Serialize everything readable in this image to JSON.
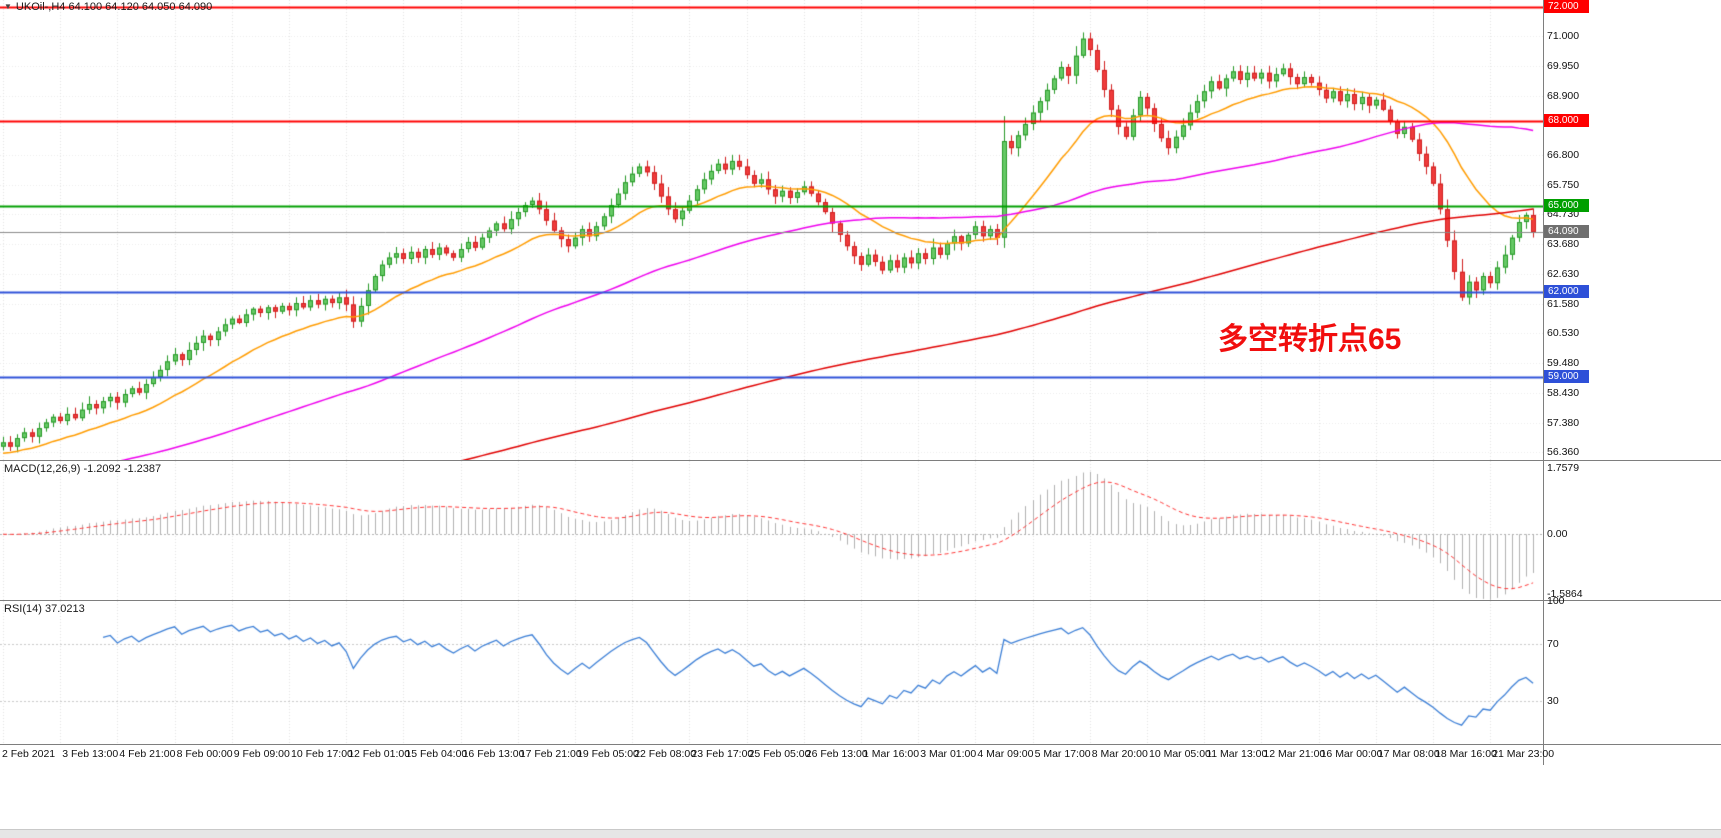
{
  "symbol_info": {
    "marker": "▼",
    "text": "UKOil-,H4 64.100 64.120 64.050 64.090"
  },
  "annotation": {
    "text": "多空转折点65",
    "color": "#f10e0e"
  },
  "panels": {
    "macd": {
      "label": "MACD(12,26,9) -1.2092 -1.2387"
    },
    "rsi": {
      "label": "RSI(14) 37.0213"
    }
  },
  "chart_data": {
    "type": "candlestick+indicators",
    "symbol": "UKOil-",
    "timeframe": "H4",
    "quote": {
      "open": 64.1,
      "high": 64.12,
      "low": 64.05,
      "close": 64.09
    },
    "bars_per_label": 8,
    "x_labels": [
      "2 Feb 2021",
      "3 Feb 13:00",
      "4 Feb 21:00",
      "8 Feb 00:00",
      "9 Feb 09:00",
      "10 Feb 17:00",
      "12 Feb 01:00",
      "15 Feb 04:00",
      "16 Feb 13:00",
      "17 Feb 21:00",
      "19 Feb 05:00",
      "22 Feb 08:00",
      "23 Feb 17:00",
      "25 Feb 05:00",
      "26 Feb 13:00",
      "1 Mar 16:00",
      "3 Mar 01:00",
      "4 Mar 09:00",
      "5 Mar 17:00",
      "8 Mar 20:00",
      "10 Mar 05:00",
      "11 Mar 13:00",
      "12 Mar 21:00",
      "16 Mar 00:00",
      "17 Mar 08:00",
      "18 Mar 16:00",
      "21 Mar 23:00"
    ],
    "closes": [
      56.7,
      56.55,
      56.85,
      57.05,
      56.9,
      57.2,
      57.4,
      57.6,
      57.45,
      57.7,
      57.55,
      57.85,
      58.05,
      57.9,
      58.15,
      58.3,
      58.1,
      58.4,
      58.6,
      58.45,
      58.75,
      59.0,
      59.25,
      59.55,
      59.8,
      59.6,
      59.95,
      60.2,
      60.45,
      60.3,
      60.6,
      60.85,
      61.05,
      60.9,
      61.2,
      61.4,
      61.25,
      61.45,
      61.3,
      61.5,
      61.35,
      61.6,
      61.45,
      61.7,
      61.55,
      61.75,
      61.6,
      61.8,
      61.55,
      60.95,
      61.5,
      62.05,
      62.55,
      62.95,
      63.2,
      63.35,
      63.15,
      63.4,
      63.2,
      63.5,
      63.3,
      63.55,
      63.35,
      63.2,
      63.5,
      63.75,
      63.55,
      63.9,
      64.15,
      64.4,
      64.2,
      64.55,
      64.8,
      65.05,
      65.2,
      64.9,
      64.5,
      64.15,
      63.85,
      63.6,
      63.9,
      64.2,
      63.95,
      64.3,
      64.65,
      65.05,
      65.45,
      65.85,
      66.15,
      66.4,
      66.2,
      65.8,
      65.35,
      64.9,
      64.55,
      64.85,
      65.2,
      65.6,
      65.95,
      66.25,
      66.5,
      66.3,
      66.6,
      66.4,
      66.1,
      65.8,
      65.95,
      65.6,
      65.35,
      65.55,
      65.3,
      65.5,
      65.7,
      65.45,
      65.15,
      64.8,
      64.4,
      64.0,
      63.6,
      63.25,
      62.95,
      63.3,
      63.05,
      62.75,
      63.1,
      62.85,
      63.2,
      63.0,
      63.35,
      63.15,
      63.55,
      63.3,
      63.7,
      63.95,
      63.7,
      64.0,
      64.3,
      63.95,
      64.2,
      63.9,
      67.3,
      67.05,
      67.5,
      67.9,
      68.3,
      68.7,
      69.1,
      69.5,
      69.9,
      69.6,
      70.3,
      70.9,
      70.5,
      69.8,
      69.1,
      68.4,
      67.8,
      67.45,
      68.2,
      68.85,
      68.45,
      67.9,
      67.4,
      67.05,
      67.45,
      67.85,
      68.3,
      68.7,
      69.05,
      69.4,
      69.15,
      69.5,
      69.75,
      69.45,
      69.7,
      69.5,
      69.7,
      69.4,
      69.65,
      69.85,
      69.55,
      69.3,
      69.55,
      69.35,
      69.1,
      68.8,
      69.05,
      68.7,
      68.95,
      68.6,
      68.85,
      68.55,
      68.75,
      68.4,
      68.0,
      67.55,
      67.8,
      67.35,
      66.85,
      66.4,
      65.8,
      64.9,
      63.8,
      62.7,
      61.8,
      62.35,
      62.05,
      62.55,
      62.3,
      62.85,
      63.3,
      63.9,
      64.45,
      64.7,
      64.09
    ],
    "candle_colors": {
      "up_fill": "#66c966",
      "up_stroke": "#279927",
      "down_fill": "#ef3b3b",
      "down_stroke": "#d01f1f"
    },
    "price_axis": {
      "ylim": [
        56.08,
        72.26
      ],
      "ticks": [
        {
          "p": 71.0,
          "t": "71.000"
        },
        {
          "p": 69.95,
          "t": "69.950"
        },
        {
          "p": 68.9,
          "t": "68.900"
        },
        {
          "p": 66.8,
          "t": "66.800"
        },
        {
          "p": 65.75,
          "t": "65.750"
        },
        {
          "p": 64.73,
          "t": "64.730"
        },
        {
          "p": 63.68,
          "t": "63.680"
        },
        {
          "p": 62.63,
          "t": "62.630"
        },
        {
          "p": 61.58,
          "t": "61.580"
        },
        {
          "p": 60.53,
          "t": "60.530"
        },
        {
          "p": 59.48,
          "t": "59.480"
        },
        {
          "p": 58.43,
          "t": "58.430"
        },
        {
          "p": 57.38,
          "t": "57.380"
        },
        {
          "p": 56.36,
          "t": "56.360"
        }
      ]
    },
    "hlines": [
      {
        "price": 72.0,
        "color": "#ff0000",
        "label": "72.000",
        "lw": 2
      },
      {
        "price": 68.0,
        "color": "#ff0000",
        "label": "68.000",
        "lw": 2
      },
      {
        "price": 65.0,
        "color": "#009f00",
        "label": "65.000",
        "lw": 2
      },
      {
        "price": 62.0,
        "color": "#2e50d8",
        "label": "62.000",
        "lw": 2
      },
      {
        "price": 59.0,
        "color": "#2e50d8",
        "label": "59.000",
        "lw": 2
      }
    ],
    "current_price": {
      "price": 64.09,
      "color": "#8a8a8a",
      "label": "64.090"
    },
    "moving_averages": [
      {
        "name": "fast-ma",
        "type": "ema",
        "period": 20,
        "color": "#ff9c00"
      },
      {
        "name": "medium-ma",
        "type": "sma",
        "period": 72,
        "color": "#ee00ee"
      },
      {
        "name": "slow-ma",
        "type": "sma",
        "period": 200,
        "color": "#e00000"
      }
    ],
    "macd": {
      "params": [
        12,
        26,
        9
      ],
      "value_main": "-1.2092",
      "value_signal": "-1.2387",
      "ylim": [
        -1.75,
        1.95
      ],
      "ticks": [
        {
          "v": 1.7579,
          "t": "1.7579"
        },
        {
          "v": 0,
          "t": "0.00"
        },
        {
          "v": -1.5864,
          "t": "-1.5864"
        }
      ],
      "hist_color": "#b0b0b0",
      "signal_color": "#ff3333"
    },
    "rsi": {
      "period": 14,
      "value": "37.0213",
      "ylim": [
        0,
        100
      ],
      "levels": [
        70,
        30
      ],
      "ticks": [
        {
          "v": 100,
          "t": "100"
        },
        {
          "v": 70,
          "t": "70"
        },
        {
          "v": 30,
          "t": "30"
        }
      ],
      "color": "#3c7fd6"
    }
  }
}
